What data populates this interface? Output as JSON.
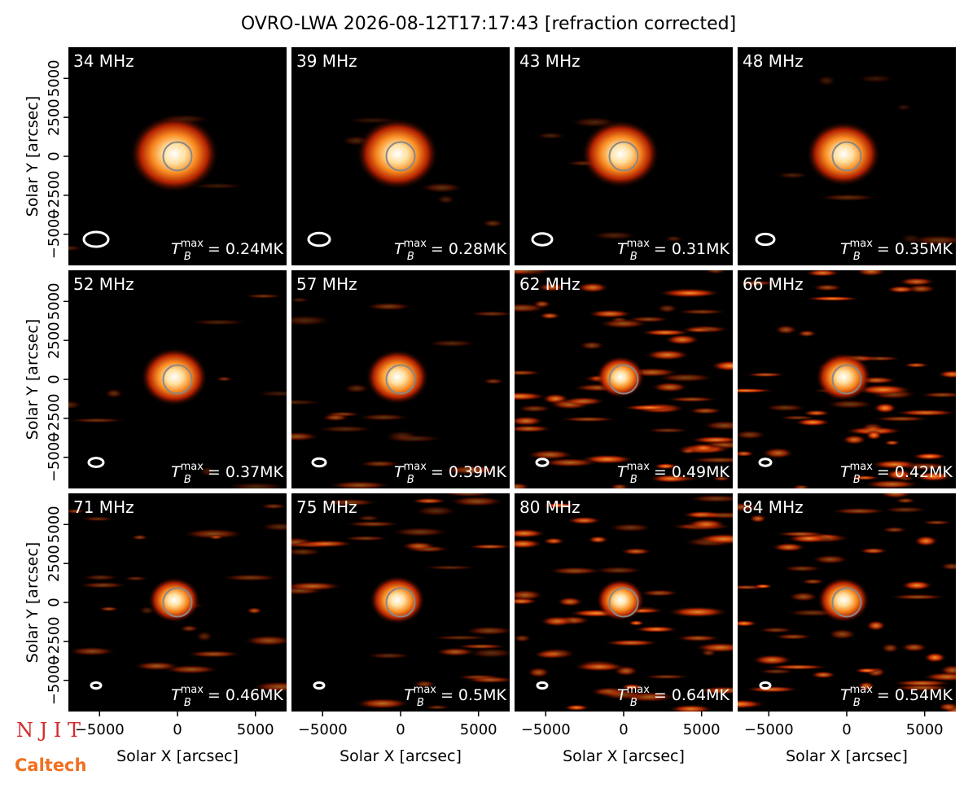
{
  "title": "OVRO-LWA 2026-08-12T17:17:43 [refraction corrected]",
  "logos": [
    "N J I T",
    "Caltech"
  ],
  "annotation": {
    "symbol": "T",
    "sub": "B",
    "sup": "max",
    "eq": " = "
  },
  "chart_data": [
    {
      "type": "image",
      "title": "34 MHz",
      "tb_max": "0.24MK",
      "xlim": [
        -7000,
        7000
      ],
      "ylim": [
        -7000,
        7000
      ],
      "ylabel": "Solar Y [arcsec]",
      "yticks": [
        {
          "value": -5000,
          "label": "−5000"
        },
        {
          "value": -2500,
          "label": "−2500"
        },
        0,
        2500,
        5000
      ]
    },
    {
      "type": "image",
      "title": "39 MHz",
      "tb_max": "0.28MK",
      "xlim": [
        -7000,
        7000
      ],
      "ylim": [
        -7000,
        7000
      ]
    },
    {
      "type": "image",
      "title": "43 MHz",
      "tb_max": "0.31MK",
      "xlim": [
        -7000,
        7000
      ],
      "ylim": [
        -7000,
        7000
      ]
    },
    {
      "type": "image",
      "title": "48 MHz",
      "tb_max": "0.35MK",
      "xlim": [
        -7000,
        7000
      ],
      "ylim": [
        -7000,
        7000
      ]
    },
    {
      "type": "image",
      "title": "52 MHz",
      "tb_max": "0.37MK",
      "xlim": [
        -7000,
        7000
      ],
      "ylim": [
        -7000,
        7000
      ],
      "ylabel": "Solar Y [arcsec]",
      "yticks": [
        {
          "value": -5000,
          "label": "−5000"
        },
        {
          "value": -2500,
          "label": "−2500"
        },
        0,
        2500,
        5000
      ]
    },
    {
      "type": "image",
      "title": "57 MHz",
      "tb_max": "0.39MK",
      "xlim": [
        -7000,
        7000
      ],
      "ylim": [
        -7000,
        7000
      ]
    },
    {
      "type": "image",
      "title": "62 MHz",
      "tb_max": "0.49MK",
      "xlim": [
        -7000,
        7000
      ],
      "ylim": [
        -7000,
        7000
      ]
    },
    {
      "type": "image",
      "title": "66 MHz",
      "tb_max": "0.42MK",
      "xlim": [
        -7000,
        7000
      ],
      "ylim": [
        -7000,
        7000
      ]
    },
    {
      "type": "image",
      "title": "71 MHz",
      "tb_max": "0.46MK",
      "xlim": [
        -7000,
        7000
      ],
      "ylim": [
        -7000,
        7000
      ],
      "ylabel": "Solar Y [arcsec]",
      "yticks": [
        {
          "value": -5000,
          "label": "−5000"
        },
        {
          "value": -2500,
          "label": "−2500"
        },
        0,
        2500,
        5000
      ],
      "xlabel": "Solar X [arcsec]",
      "xticks": [
        {
          "value": -5000,
          "label": "−5000"
        },
        0,
        5000
      ]
    },
    {
      "type": "image",
      "title": "75 MHz",
      "tb_max": "0.5MK",
      "xlim": [
        -7000,
        7000
      ],
      "ylim": [
        -7000,
        7000
      ],
      "xlabel": "Solar X [arcsec]",
      "xticks": [
        {
          "value": -5000,
          "label": "−5000"
        },
        0,
        5000
      ]
    },
    {
      "type": "image",
      "title": "80 MHz",
      "tb_max": "0.64MK",
      "xlim": [
        -7000,
        7000
      ],
      "ylim": [
        -7000,
        7000
      ],
      "xlabel": "Solar X [arcsec]",
      "xticks": [
        {
          "value": -5000,
          "label": "−5000"
        },
        0,
        5000
      ]
    },
    {
      "type": "image",
      "title": "84 MHz",
      "tb_max": "0.54MK",
      "xlim": [
        -7000,
        7000
      ],
      "ylim": [
        -7000,
        7000
      ],
      "xlabel": "Solar X [arcsec]",
      "xticks": [
        {
          "value": -5000,
          "label": "−5000"
        },
        0,
        5000
      ]
    }
  ]
}
